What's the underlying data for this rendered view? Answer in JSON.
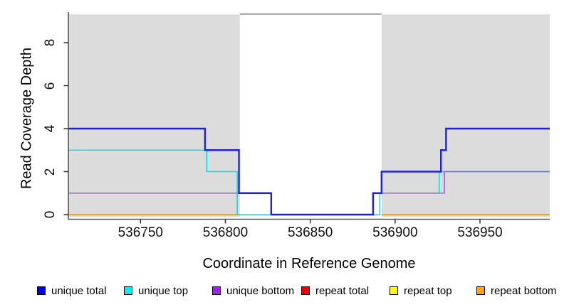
{
  "chart_data": {
    "type": "line",
    "subtype": "step",
    "title": "",
    "xlabel": "Coordinate in Reference Genome",
    "ylabel": "Read Coverage Depth",
    "xlim": [
      536707.3,
      536991.1
    ],
    "ylim": [
      0,
      9.4
    ],
    "x_ticks": [
      536750,
      536800,
      536850,
      536900,
      536950
    ],
    "y_ticks": [
      0,
      2,
      4,
      6,
      8
    ],
    "grid": false,
    "shade_color": "#dcdcdc",
    "shaded_regions": [
      {
        "x0": 536707.3,
        "x1": 536808.5
      },
      {
        "x0": 536892.0,
        "x1": 536991.1
      }
    ],
    "gap_top_border_color": "#888888",
    "axis_color": "#555555",
    "series": [
      {
        "name": "unique total",
        "color": "#2020dd",
        "width": 2.4,
        "kind": "step",
        "x": [
          536707.3,
          536788,
          536808,
          536827,
          536887,
          536892,
          536927,
          536930
        ],
        "y": [
          4,
          3,
          1,
          0,
          1,
          2,
          3,
          4
        ],
        "x_end": 536991.1
      },
      {
        "name": "unique top",
        "color": "#00e5ee",
        "width": 1.6,
        "kind": "step",
        "x": [
          536707.3,
          536789,
          536807,
          536891,
          536926
        ],
        "y": [
          3,
          2,
          0,
          1,
          2
        ],
        "x_end": 536991.1
      },
      {
        "name": "unique bottom",
        "color": "#a558e0",
        "width": 1.6,
        "kind": "step",
        "x": [
          536707.3,
          536827,
          536887,
          536929
        ],
        "y": [
          1,
          0,
          1,
          2
        ],
        "x_end": 536991.1
      },
      {
        "name": "repeat total",
        "color": "#ee0000",
        "width": 1.4,
        "kind": "flat",
        "value": 0,
        "segments": [
          [
            536707.3,
            536808.5
          ],
          [
            536892.0,
            536991.1
          ]
        ]
      },
      {
        "name": "repeat top",
        "color": "#ffff00",
        "width": 1.4,
        "kind": "flat",
        "value": 0,
        "segments": [
          [
            536707.3,
            536808.5
          ],
          [
            536892.0,
            536991.1
          ]
        ]
      },
      {
        "name": "repeat bottom",
        "color": "#ffa500",
        "width": 1.8,
        "kind": "flat",
        "value": 0,
        "segments": [
          [
            536707.3,
            536808.5
          ],
          [
            536892.0,
            536991.1
          ]
        ]
      }
    ],
    "draw_order": [
      "repeat total",
      "repeat top",
      "repeat bottom",
      "unique top",
      "unique bottom",
      "unique total"
    ],
    "legend": {
      "position": "bottom",
      "items": [
        {
          "label": "unique total",
          "color": "#0000ee"
        },
        {
          "label": "unique top",
          "color": "#00eeee"
        },
        {
          "label": "unique bottom",
          "color": "#a020f0"
        },
        {
          "label": "repeat total",
          "color": "#ee0000"
        },
        {
          "label": "repeat top",
          "color": "#ffff00"
        },
        {
          "label": "repeat bottom",
          "color": "#ffa500"
        }
      ]
    }
  }
}
